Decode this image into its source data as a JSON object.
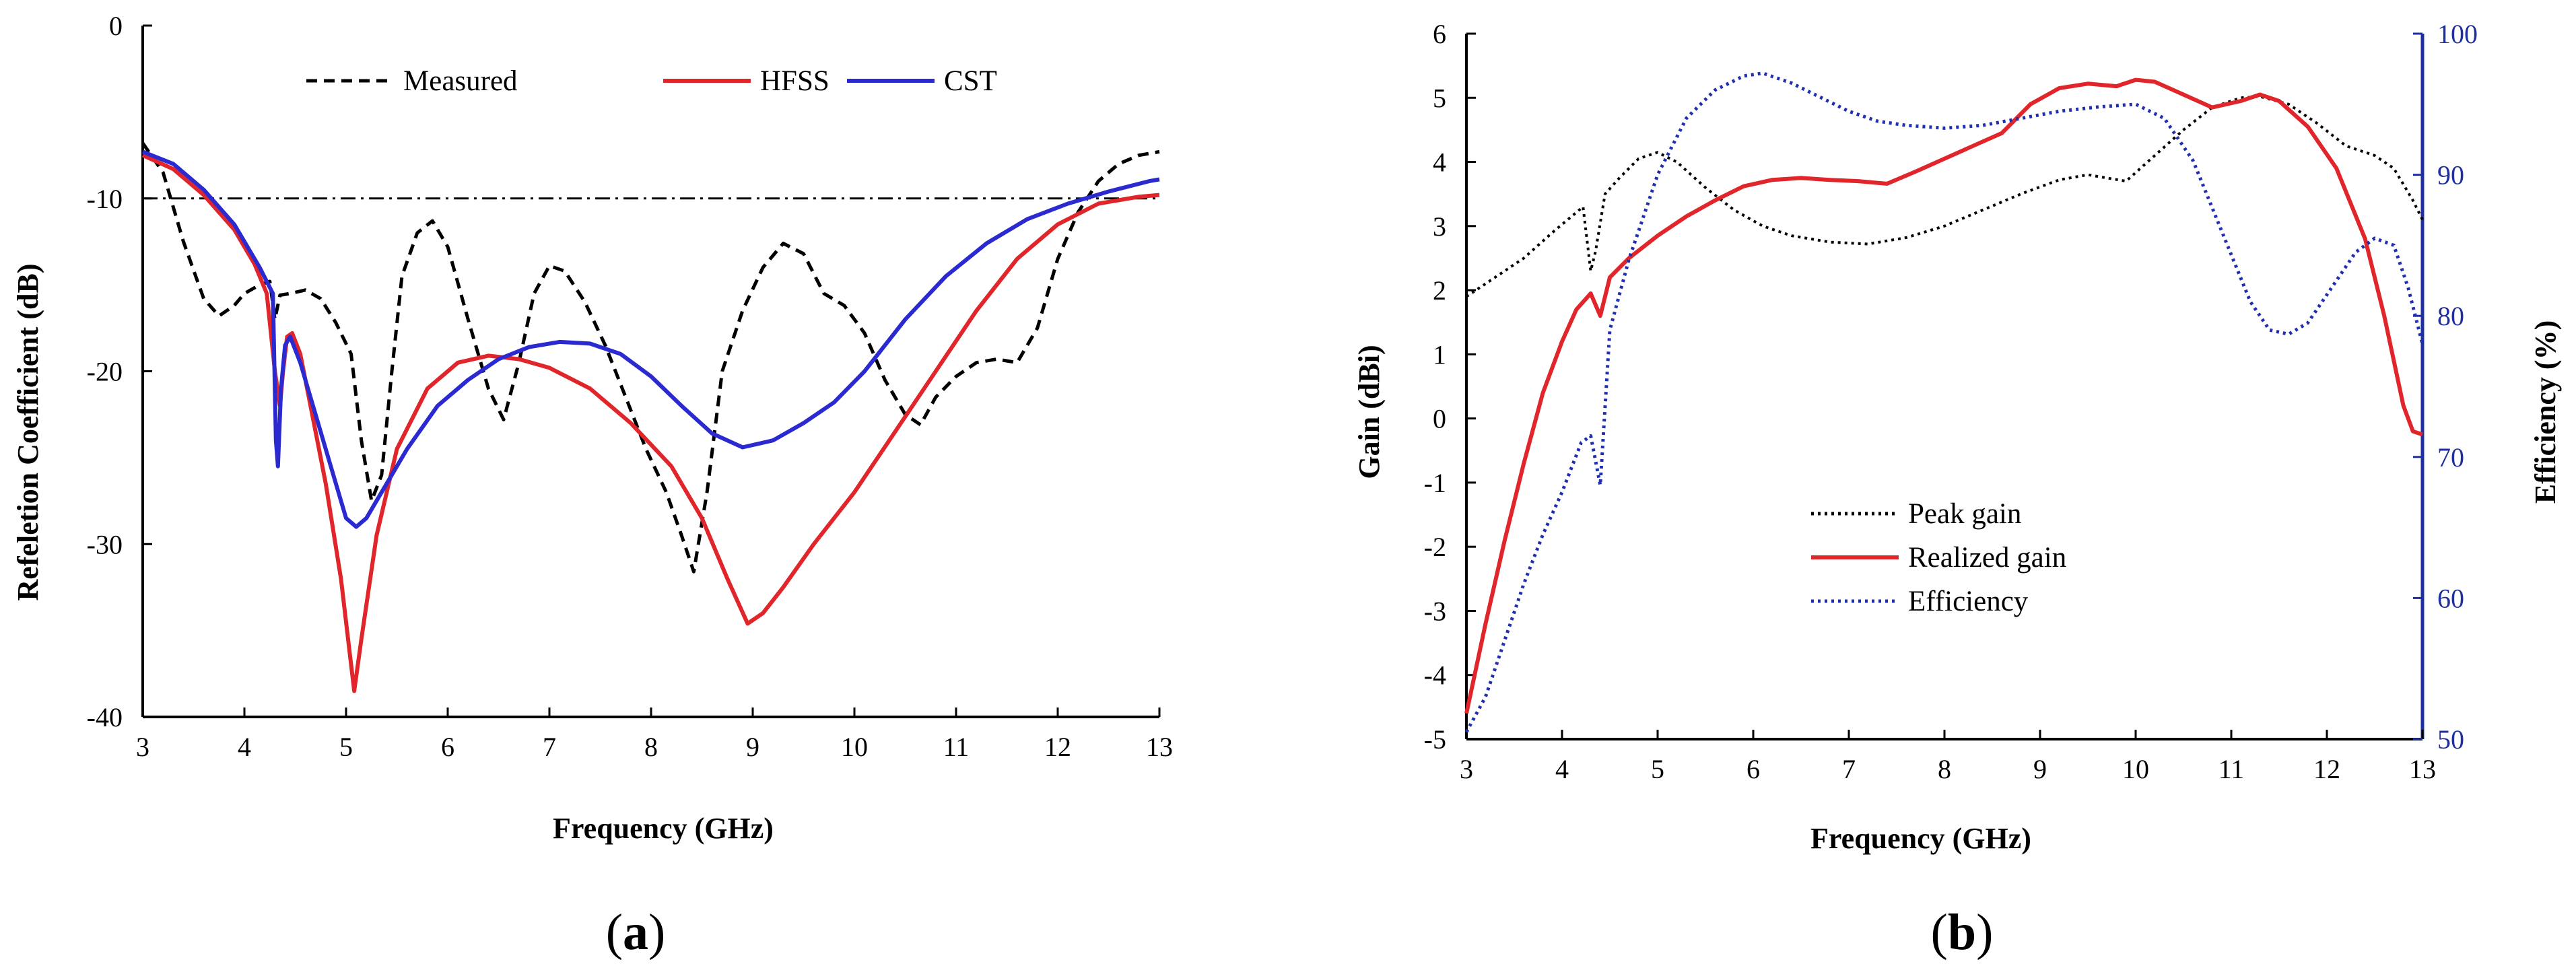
{
  "chart_data": [
    {
      "type": "line",
      "panel_label": "a",
      "xlabel": "Frequency (GHz)",
      "ylabel": "Refeletion Coefficient (dB)",
      "xlim": [
        3,
        13
      ],
      "ylim": [
        -40,
        0
      ],
      "xticks": [
        3,
        4,
        5,
        6,
        7,
        8,
        9,
        10,
        11,
        12,
        13
      ],
      "yticks": [
        0,
        -10,
        -20,
        -30,
        -40
      ],
      "reference_line": {
        "y": -10,
        "style": "dash-dot",
        "color": "#000000"
      },
      "legend_position": "top-center",
      "series": [
        {
          "name": "Measured",
          "color": "#000000",
          "dash": "dashed",
          "x": [
            3.0,
            3.2,
            3.4,
            3.6,
            3.75,
            3.9,
            4.0,
            4.15,
            4.25,
            4.3,
            4.35,
            4.45,
            4.6,
            4.75,
            4.9,
            5.05,
            5.15,
            5.25,
            5.35,
            5.45,
            5.55,
            5.7,
            5.85,
            6.0,
            6.2,
            6.4,
            6.55,
            6.7,
            6.85,
            7.0,
            7.15,
            7.35,
            7.55,
            7.75,
            7.95,
            8.15,
            8.3,
            8.42,
            8.55,
            8.7,
            8.9,
            9.1,
            9.3,
            9.5,
            9.7,
            9.9,
            10.1,
            10.3,
            10.5,
            10.65,
            10.8,
            11.0,
            11.2,
            11.4,
            11.6,
            11.8,
            12.0,
            12.2,
            12.4,
            12.6,
            12.8,
            13.0
          ],
          "y": [
            -6.8,
            -8.5,
            -12.5,
            -15.8,
            -16.8,
            -16.2,
            -15.5,
            -15.0,
            -14.8,
            -17.0,
            -15.6,
            -15.5,
            -15.3,
            -15.8,
            -17.2,
            -19.0,
            -24.0,
            -27.5,
            -26.0,
            -20.0,
            -14.5,
            -12.0,
            -11.3,
            -12.8,
            -17.0,
            -21.0,
            -22.8,
            -19.5,
            -15.5,
            -13.9,
            -14.2,
            -16.0,
            -18.5,
            -21.5,
            -24.5,
            -27.0,
            -29.5,
            -31.6,
            -27.0,
            -20.0,
            -16.5,
            -14.0,
            -12.6,
            -13.2,
            -15.5,
            -16.2,
            -17.8,
            -20.5,
            -22.5,
            -23.1,
            -21.5,
            -20.3,
            -19.5,
            -19.3,
            -19.5,
            -17.5,
            -13.5,
            -10.8,
            -9.0,
            -8.0,
            -7.5,
            -7.3
          ]
        },
        {
          "name": "HFSS",
          "color": "#e0262b",
          "dash": "solid",
          "x": [
            3.0,
            3.3,
            3.6,
            3.9,
            4.1,
            4.22,
            4.3,
            4.35,
            4.38,
            4.42,
            4.47,
            4.55,
            4.65,
            4.8,
            4.95,
            5.03,
            5.08,
            5.15,
            5.3,
            5.5,
            5.8,
            6.1,
            6.4,
            6.7,
            7.0,
            7.4,
            7.8,
            8.2,
            8.5,
            8.75,
            8.95,
            9.1,
            9.3,
            9.6,
            10.0,
            10.4,
            10.8,
            11.2,
            11.6,
            12.0,
            12.4,
            12.8,
            13.0
          ],
          "y": [
            -7.5,
            -8.3,
            -9.8,
            -11.8,
            -13.8,
            -15.5,
            -20.0,
            -22.0,
            -20.0,
            -18.0,
            -17.8,
            -19.0,
            -22.0,
            -26.5,
            -32.0,
            -36.0,
            -38.5,
            -35.5,
            -29.5,
            -24.5,
            -21.0,
            -19.5,
            -19.1,
            -19.3,
            -19.8,
            -21.0,
            -23.0,
            -25.5,
            -28.5,
            -32.0,
            -34.6,
            -34.0,
            -32.5,
            -30.0,
            -27.0,
            -23.5,
            -20.0,
            -16.5,
            -13.5,
            -11.5,
            -10.3,
            -9.9,
            -9.8
          ]
        },
        {
          "name": "CST",
          "color": "#2a2ad0",
          "dash": "solid",
          "x": [
            3.0,
            3.3,
            3.6,
            3.9,
            4.15,
            4.28,
            4.31,
            4.33,
            4.36,
            4.4,
            4.45,
            4.55,
            4.7,
            4.85,
            5.0,
            5.1,
            5.2,
            5.35,
            5.6,
            5.9,
            6.2,
            6.5,
            6.8,
            7.1,
            7.4,
            7.7,
            8.0,
            8.3,
            8.6,
            8.9,
            9.2,
            9.5,
            9.8,
            10.1,
            10.5,
            10.9,
            11.3,
            11.7,
            12.1,
            12.5,
            12.9,
            13.0
          ],
          "y": [
            -7.3,
            -8.0,
            -9.5,
            -11.5,
            -14.0,
            -15.5,
            -24.0,
            -25.5,
            -21.0,
            -18.5,
            -18.0,
            -19.5,
            -22.5,
            -25.5,
            -28.5,
            -29.0,
            -28.5,
            -27.0,
            -24.5,
            -22.0,
            -20.5,
            -19.3,
            -18.6,
            -18.3,
            -18.4,
            -19.0,
            -20.3,
            -22.0,
            -23.6,
            -24.4,
            -24.0,
            -23.0,
            -21.8,
            -20.0,
            -17.0,
            -14.5,
            -12.6,
            -11.2,
            -10.3,
            -9.6,
            -9.0,
            -8.9
          ]
        }
      ]
    },
    {
      "type": "line",
      "panel_label": "b",
      "xlabel": "Frequency (GHz)",
      "ylabel": "Gain (dBi)",
      "y2label": "Efficiency (%)",
      "xlim": [
        3,
        13
      ],
      "ylim": [
        -5,
        6
      ],
      "y2lim": [
        50,
        100
      ],
      "xticks": [
        3,
        4,
        5,
        6,
        7,
        8,
        9,
        10,
        11,
        12,
        13
      ],
      "yticks": [
        -5,
        -4,
        -3,
        -2,
        -1,
        0,
        1,
        2,
        3,
        4,
        5,
        6
      ],
      "y2ticks": [
        50,
        60,
        70,
        80,
        90,
        100
      ],
      "y2_axis_color": "#1f2f9f",
      "legend_position": "lower-center",
      "series": [
        {
          "name": "Peak gain",
          "color": "#000000",
          "dash": "dotted",
          "axis": "left",
          "x": [
            3.0,
            3.3,
            3.6,
            3.9,
            4.1,
            4.22,
            4.3,
            4.35,
            4.45,
            4.6,
            4.8,
            5.0,
            5.2,
            5.5,
            5.8,
            6.1,
            6.4,
            6.8,
            7.2,
            7.6,
            8.0,
            8.4,
            8.8,
            9.2,
            9.5,
            9.7,
            9.9,
            10.2,
            10.5,
            10.8,
            11.1,
            11.3,
            11.6,
            11.9,
            12.2,
            12.5,
            12.7,
            12.9,
            13.0
          ],
          "y": [
            1.9,
            2.2,
            2.5,
            2.9,
            3.15,
            3.3,
            2.3,
            2.6,
            3.5,
            3.75,
            4.05,
            4.15,
            4.0,
            3.6,
            3.25,
            3.0,
            2.85,
            2.75,
            2.72,
            2.82,
            3.0,
            3.25,
            3.5,
            3.72,
            3.8,
            3.75,
            3.7,
            4.1,
            4.5,
            4.85,
            5.0,
            5.02,
            4.9,
            4.6,
            4.25,
            4.1,
            3.9,
            3.4,
            3.1
          ]
        },
        {
          "name": "Realized gain",
          "color": "#e0262b",
          "dash": "solid",
          "axis": "left",
          "x": [
            3.0,
            3.2,
            3.4,
            3.6,
            3.8,
            4.0,
            4.15,
            4.3,
            4.4,
            4.5,
            4.7,
            5.0,
            5.3,
            5.6,
            5.9,
            6.2,
            6.5,
            6.8,
            7.1,
            7.4,
            7.7,
            8.0,
            8.3,
            8.6,
            8.9,
            9.2,
            9.5,
            9.8,
            10.0,
            10.2,
            10.5,
            10.8,
            11.1,
            11.3,
            11.5,
            11.8,
            12.1,
            12.4,
            12.6,
            12.8,
            12.9,
            13.0
          ],
          "y": [
            -4.6,
            -3.2,
            -1.9,
            -0.7,
            0.4,
            1.2,
            1.7,
            1.95,
            1.6,
            2.2,
            2.5,
            2.85,
            3.15,
            3.4,
            3.62,
            3.72,
            3.75,
            3.72,
            3.7,
            3.66,
            3.85,
            4.05,
            4.25,
            4.45,
            4.9,
            5.15,
            5.22,
            5.18,
            5.28,
            5.25,
            5.05,
            4.85,
            4.95,
            5.05,
            4.95,
            4.55,
            3.9,
            2.8,
            1.6,
            0.2,
            -0.2,
            -0.25
          ]
        },
        {
          "name": "Efficiency",
          "color": "#1f2fb0",
          "dash": "dotted",
          "axis": "right",
          "x": [
            3.0,
            3.2,
            3.4,
            3.6,
            3.8,
            4.0,
            4.2,
            4.3,
            4.4,
            4.5,
            4.7,
            5.0,
            5.3,
            5.6,
            5.9,
            6.1,
            6.4,
            6.7,
            7.0,
            7.3,
            7.6,
            8.0,
            8.4,
            8.8,
            9.2,
            9.6,
            10.0,
            10.3,
            10.6,
            10.9,
            11.2,
            11.4,
            11.6,
            11.8,
            12.0,
            12.3,
            12.5,
            12.7,
            12.85,
            13.0
          ],
          "y": [
            50.5,
            53.0,
            57.0,
            61.0,
            64.5,
            67.5,
            71.0,
            71.5,
            68.0,
            79.0,
            84.0,
            90.0,
            94.0,
            96.0,
            97.0,
            97.2,
            96.5,
            95.5,
            94.5,
            93.8,
            93.5,
            93.3,
            93.5,
            94.0,
            94.5,
            94.8,
            95.0,
            94.0,
            91.0,
            86.0,
            81.0,
            79.0,
            78.7,
            79.5,
            81.5,
            84.5,
            85.5,
            85.0,
            82.0,
            78.0
          ]
        }
      ]
    }
  ]
}
